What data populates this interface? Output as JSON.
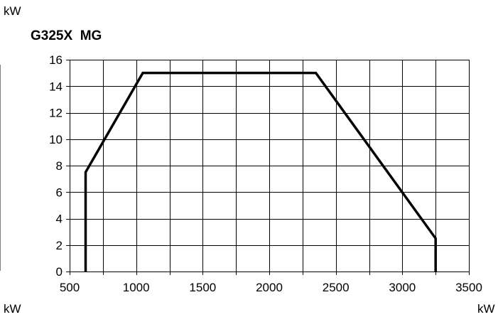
{
  "units": {
    "y_top": "kW",
    "x_left": "kW",
    "x_right": "kW"
  },
  "chart_data": {
    "type": "line",
    "title": "G325X  MG",
    "xlabel": "kW",
    "ylabel": "kW",
    "xlim": [
      500,
      3500
    ],
    "ylim": [
      0,
      16
    ],
    "xticks": [
      500,
      1000,
      1500,
      2000,
      2500,
      3000,
      3500
    ],
    "yticks": [
      0,
      2,
      4,
      6,
      8,
      10,
      12,
      14,
      16
    ],
    "grid": true,
    "line_color": "#000000",
    "series": [
      {
        "x": [
          620,
          620,
          1050,
          2350,
          3250,
          3250
        ],
        "y": [
          0,
          7.5,
          15,
          15,
          2.5,
          0
        ]
      }
    ]
  }
}
